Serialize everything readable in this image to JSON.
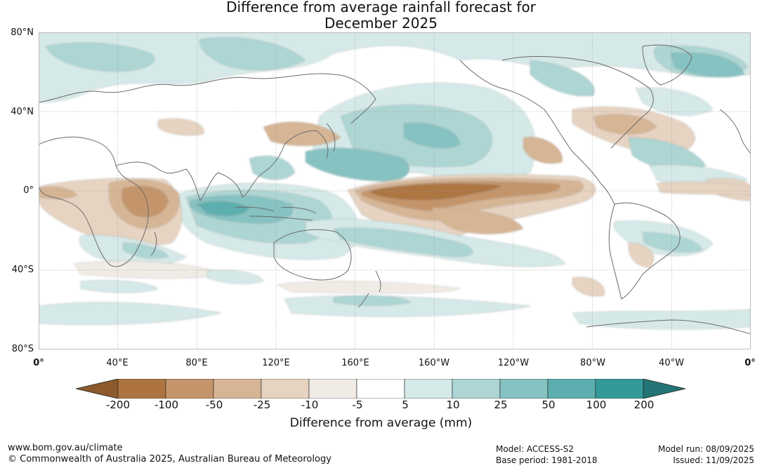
{
  "title": {
    "line1": "Difference from average rainfall forecast for",
    "line2": "December 2025"
  },
  "lat_labels": [
    "80°N",
    "40°N",
    "0°",
    "40°S",
    "80°S"
  ],
  "lon_labels": [
    "0°",
    "40°E",
    "80°E",
    "120°E",
    "160°E",
    "160°W",
    "120°W",
    "80°W",
    "40°W",
    "0°"
  ],
  "colorbar": {
    "title": "Difference from average (mm)",
    "labels": [
      "-200",
      "-100",
      "-50",
      "-25",
      "-10",
      "-5",
      "5",
      "10",
      "25",
      "50",
      "100",
      "200"
    ],
    "colors": [
      "#8c5a2c",
      "#ad7440",
      "#c4956a",
      "#d6b595",
      "#e6d3c1",
      "#f1ebe5",
      "#ffffff",
      "#d5e9e8",
      "#acd5d4",
      "#86c2c1",
      "#5daeae",
      "#339a99",
      "#237575"
    ]
  },
  "map_colors": {
    "land_outline": "#6b6b6b",
    "grid": "#9a9a9a"
  },
  "footer": {
    "url": "www.bom.gov.au/climate",
    "copyright": "© Commonwealth of Australia 2025, Australian Bureau of Meteorology",
    "model": "Model: ACCESS-S2",
    "base_period": "Base period: 1981-2018",
    "model_run": "Model run: 08/09/2025",
    "issued": "Issued: 11/09/2025"
  }
}
